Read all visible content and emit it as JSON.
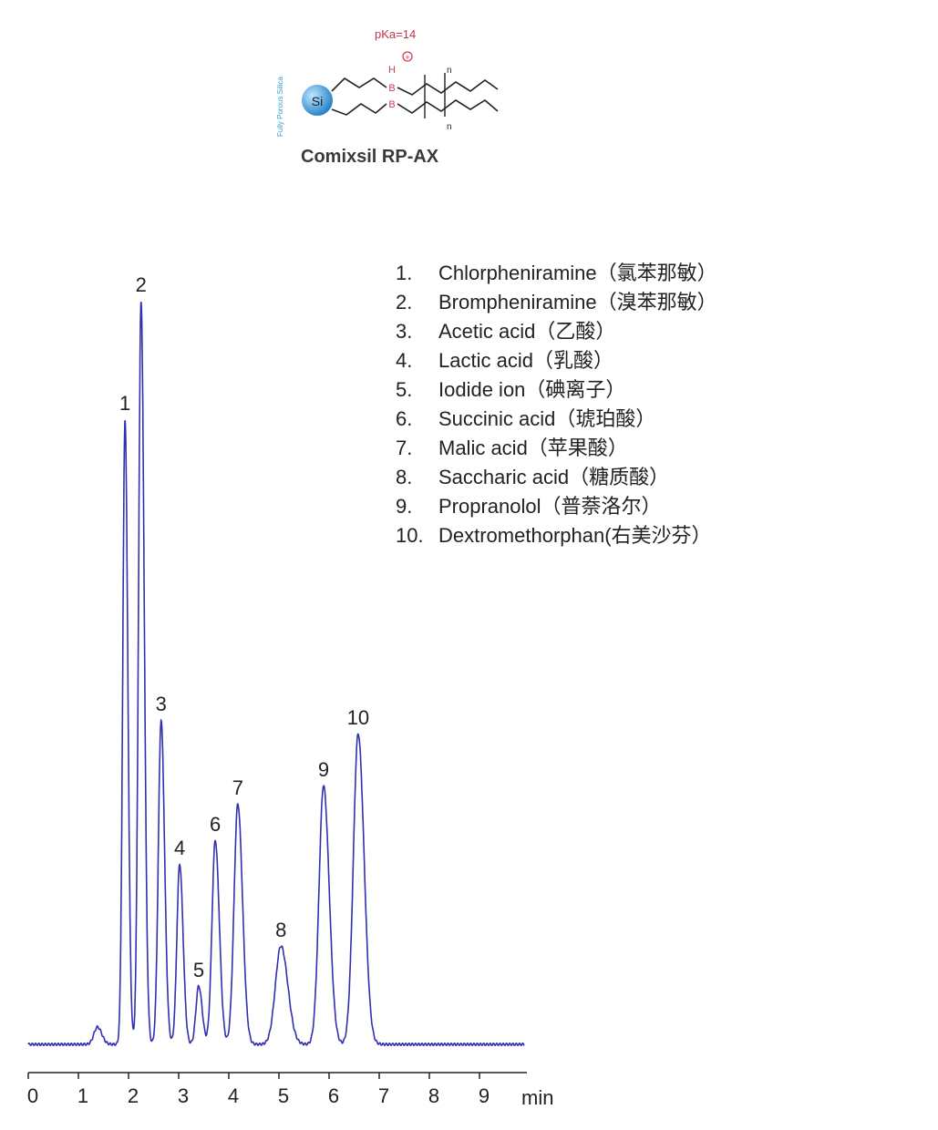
{
  "structure": {
    "name": "Comixsil RP-AX",
    "pka_label": "pKa=14",
    "side_label": "Fully Porous Silica",
    "si_label": "Si",
    "h_label": "H",
    "b_label": "B",
    "n_label": "n",
    "charge": "+",
    "colors": {
      "silica": "#2f8fd0",
      "boron": "#d04050",
      "bonds": "#222222"
    }
  },
  "chart_data": {
    "type": "line",
    "xlabel": "min",
    "ylabel": "",
    "xlim": [
      0,
      10
    ],
    "xticks": [
      "0",
      "1",
      "2",
      "3",
      "4",
      "5",
      "6",
      "7",
      "8",
      "9"
    ],
    "grid": false,
    "line_color": "#3030b0",
    "intensity_units": "relative (no y-axis shown)",
    "minor_peak": {
      "time": 1.38,
      "height": 19
    },
    "peaks": [
      {
        "label": "1",
        "time": 1.93,
        "height": 686,
        "width": 0.045
      },
      {
        "label": "2",
        "time": 2.25,
        "height": 816,
        "width": 0.05
      },
      {
        "label": "3",
        "time": 2.65,
        "height": 356,
        "width": 0.055
      },
      {
        "label": "4",
        "time": 3.02,
        "height": 198,
        "width": 0.055
      },
      {
        "label": "5",
        "time": 3.4,
        "height": 64,
        "width": 0.055
      },
      {
        "label": "6",
        "time": 3.73,
        "height": 224,
        "width": 0.065
      },
      {
        "label": "7",
        "time": 4.18,
        "height": 264,
        "width": 0.075
      },
      {
        "label": "8",
        "time": 5.04,
        "height": 108,
        "width": 0.11
      },
      {
        "label": "9",
        "time": 5.89,
        "height": 284,
        "width": 0.09
      },
      {
        "label": "10",
        "time": 6.58,
        "height": 341,
        "width": 0.095
      }
    ],
    "legend": [
      {
        "num": "1.",
        "text": "Chlorpheniramine（氯苯那敏）"
      },
      {
        "num": "2.",
        "text": "Brompheniramine（溴苯那敏）"
      },
      {
        "num": "3.",
        "text": "Acetic acid（乙酸）"
      },
      {
        "num": "4.",
        "text": "Lactic acid（乳酸）"
      },
      {
        "num": "5.",
        "text": "Iodide ion（碘离子）"
      },
      {
        "num": "6.",
        "text": "Succinic acid（琥珀酸）"
      },
      {
        "num": "7.",
        "text": "Malic acid（苹果酸）"
      },
      {
        "num": "8.",
        "text": "Saccharic acid（糖质酸）"
      },
      {
        "num": "9.",
        "text": "Propranolol（普萘洛尔）"
      },
      {
        "num": "10.",
        "text": "Dextromethorphan(右美沙芬）"
      }
    ],
    "legend_placement": "top-right"
  }
}
